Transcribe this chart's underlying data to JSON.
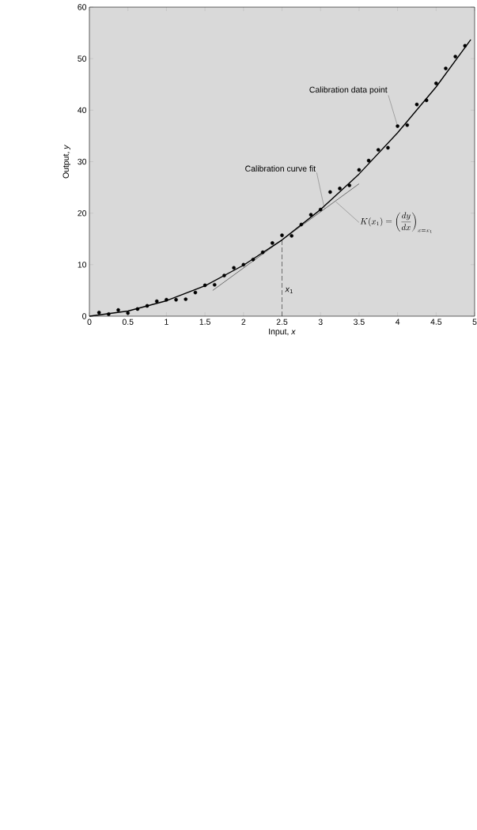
{
  "chart_data": {
    "type": "scatter",
    "xlabel": "Input, *x*",
    "ylabel": "Output, *y*",
    "xlim": [
      0,
      5
    ],
    "ylim": [
      0,
      60
    ],
    "xticks": [
      0,
      0.5,
      1,
      1.5,
      2,
      2.5,
      3,
      3.5,
      4,
      4.5,
      5
    ],
    "yticks": [
      0,
      10,
      20,
      30,
      40,
      50,
      60
    ],
    "grid": false,
    "series": [
      {
        "color": "#000000",
        "marker": "circle",
        "x": [
          0.125,
          0.25,
          0.375,
          0.5,
          0.625,
          0.75,
          0.875,
          1,
          1.125,
          1.25,
          1.375,
          1.5,
          1.625,
          1.75,
          1.875,
          2,
          2.125,
          2.25,
          2.375,
          2.5,
          2.625,
          2.75,
          2.875,
          3,
          3.125,
          3.25,
          3.375,
          3.5,
          3.625,
          3.75,
          3.875,
          4,
          4.125,
          4.25,
          4.375,
          4.5,
          4.625,
          4.75,
          4.875
        ],
        "values": [
          0.7,
          0.4,
          1.2,
          0.6,
          1.4,
          2.0,
          2.9,
          3.2,
          3.2,
          3.3,
          4.6,
          6.0,
          6.1,
          7.9,
          9.4,
          10.0,
          11.0,
          12.4,
          14.2,
          15.7,
          15.6,
          17.8,
          19.7,
          20.7,
          24.1,
          24.8,
          25.4,
          28.4,
          30.2,
          32.3,
          32.7,
          36.9,
          37.1,
          41.1,
          41.9,
          45.2,
          48.1,
          50.4,
          52.5
        ]
      },
      {
        "type": "line",
        "color": "#000000",
        "marker": "none",
        "line_style": "solid",
        "x": [
          0,
          0.5,
          1,
          1.5,
          2,
          2.5,
          3,
          3.5,
          4,
          4.5,
          4.95
        ],
        "values": [
          0,
          1.0,
          3.0,
          5.9,
          9.9,
          14.8,
          20.7,
          27.6,
          35.6,
          44.5,
          53.7
        ]
      },
      {
        "type": "line",
        "color": "#000000",
        "marker": "none",
        "line_style": "solid",
        "x": [
          1.6,
          3.5
        ],
        "values": [
          5.0,
          25.7
        ]
      },
      {
        "type": "line",
        "color": "#000000",
        "marker": "none",
        "line_style": "dashed",
        "x": [
          2.5,
          2.5
        ],
        "values": [
          0,
          14.8
        ]
      }
    ],
    "annotations": [
      {
        "text": "Calibration data point",
        "x": 4,
        "y": 36.9
      },
      {
        "text": "Calibration curve fit",
        "x": 3.05,
        "y": 20.9
      },
      {
        "text": "*x*$_{1}$",
        "x": 2.5,
        "y": 5
      },
      {
        "text": "K(x_1) = \\left(\\frac{dy}{dx}\\right)_{x = x_1}",
        "x": 3.2,
        "y": 22.2
      }
    ]
  }
}
